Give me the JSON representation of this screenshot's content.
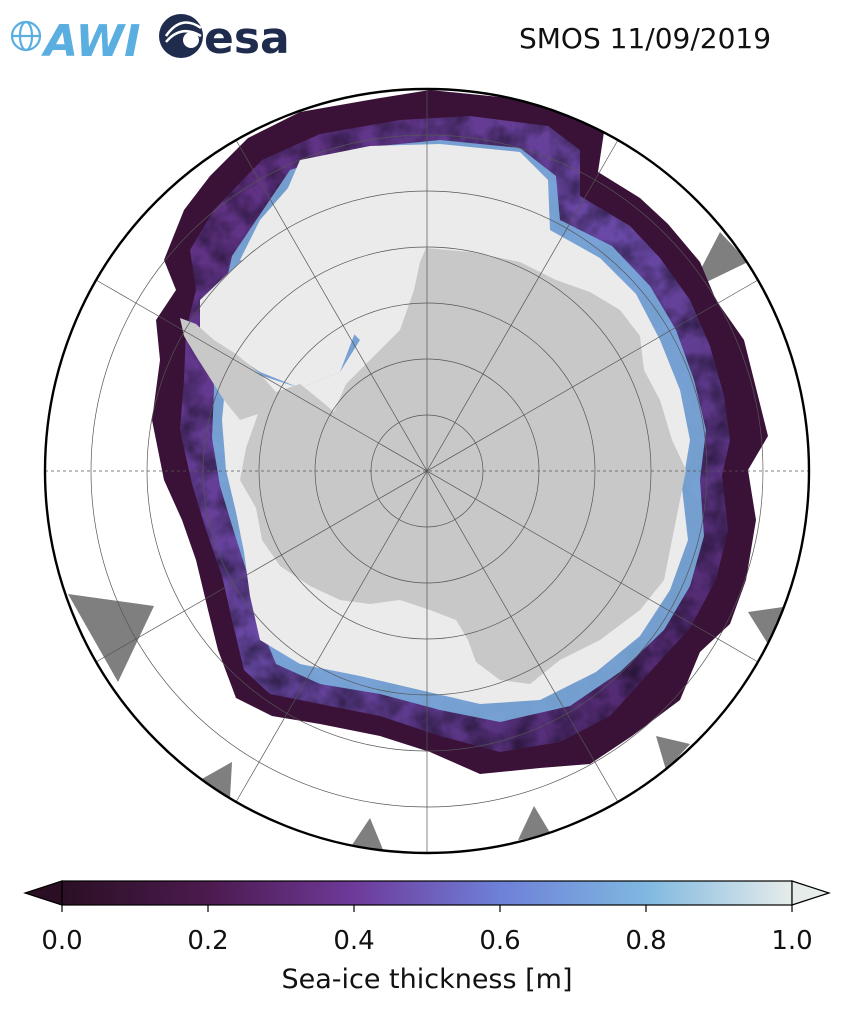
{
  "header": {
    "title": "SMOS 11/09/2019",
    "logo_left_text": "AWI",
    "logo_right_text": "esa"
  },
  "colors": {
    "ocean": "#ffffff",
    "land": "#c8c8c8",
    "no_data": "#7f7f7f",
    "thick_ice": "#ebebeb",
    "awi_logo": "#5aaee0",
    "esa_logo": "#1f2c4e"
  },
  "chart_data": {
    "type": "heatmap",
    "projection": "south-polar-stereographic",
    "colorbar": {
      "label": "Sea-ice thickness [m]",
      "range": [
        0.0,
        1.0
      ],
      "ticks": [
        "0.0",
        "0.2",
        "0.4",
        "0.6",
        "0.8",
        "1.0"
      ],
      "extend": "both",
      "colormap_stops": [
        "#2a0f24",
        "#4c1a4e",
        "#6e3a9a",
        "#6e80d8",
        "#7fb8e0",
        "#e6ecea"
      ]
    },
    "grid": true
  }
}
